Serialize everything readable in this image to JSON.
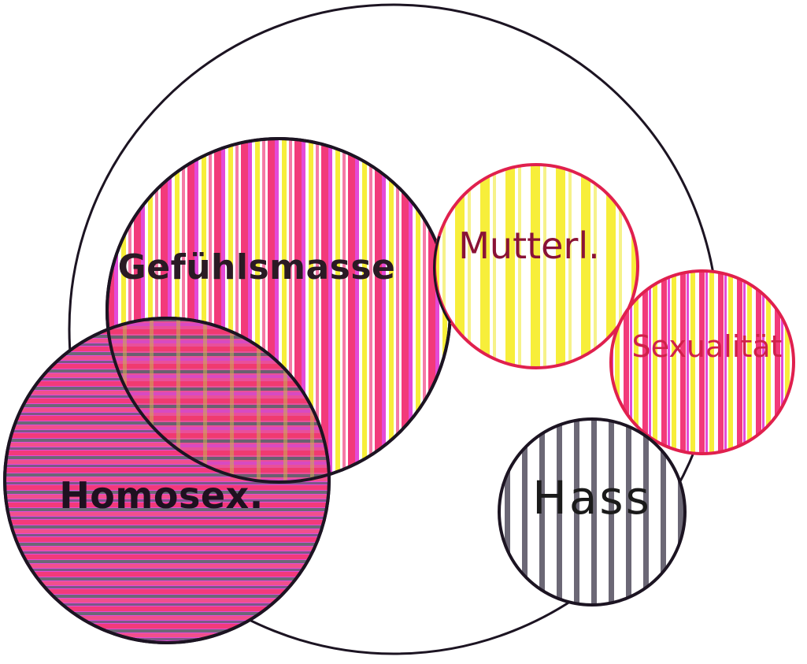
{
  "diagram": {
    "labels": {
      "gefuehlsmasse": "Gefühlsmasse",
      "homosex": "Homosex.",
      "mutterl": "Mutterl.",
      "sexualitaet": "Sexualität",
      "hass": "Hass"
    },
    "colors": {
      "outline": "#1c1422",
      "pink": "#f23a7a",
      "magenta": "#e44ad8",
      "yellow": "#f7ee3a",
      "grey_stripe": "#6c6876",
      "red_outline": "#e0204e",
      "background": "#ffffff"
    },
    "circles": [
      {
        "id": "gefuehlsmasse",
        "fill": "vertical stripes pink/magenta/yellow"
      },
      {
        "id": "homosex",
        "fill": "horizontal stripes grey/pink/magenta"
      },
      {
        "id": "mutterl",
        "fill": "vertical stripes yellow"
      },
      {
        "id": "sexualitaet",
        "fill": "vertical stripes pink/yellow"
      },
      {
        "id": "hass",
        "fill": "vertical stripes grey"
      }
    ]
  }
}
